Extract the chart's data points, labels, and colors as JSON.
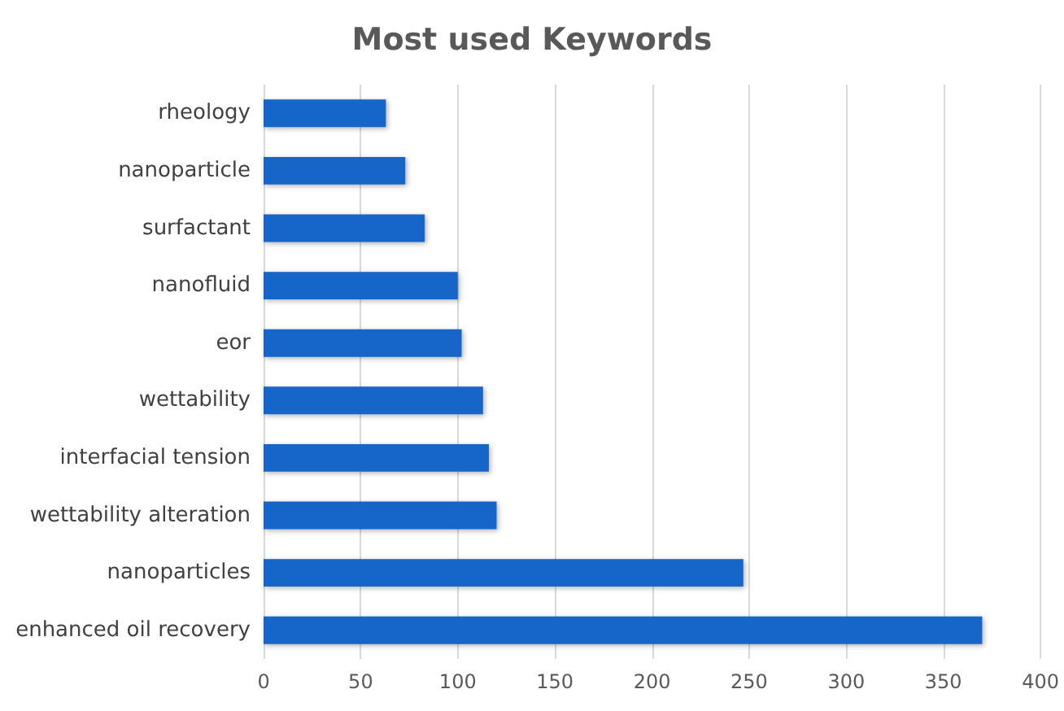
{
  "chart_data": {
    "type": "bar",
    "orientation": "horizontal",
    "title": "Most used Keywords",
    "categories": [
      "rheology",
      "nanoparticle",
      "surfactant",
      "nanofluid",
      "eor",
      "wettability",
      "interfacial tension",
      "wettability alteration",
      "nanoparticles",
      "enhanced oil recovery"
    ],
    "values": [
      63,
      73,
      83,
      100,
      102,
      113,
      116,
      120,
      247,
      370
    ],
    "color": "#1565c8",
    "xlim": [
      0,
      400
    ],
    "xticks": [
      0,
      50,
      100,
      150,
      200,
      250,
      300,
      350,
      400
    ],
    "grid": "x"
  }
}
